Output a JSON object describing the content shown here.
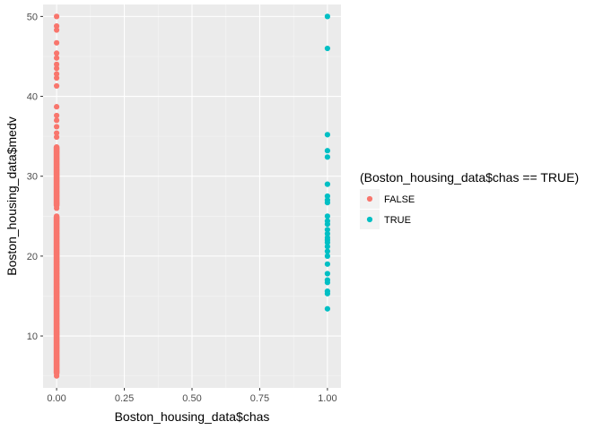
{
  "chart_data": {
    "type": "scatter",
    "xlabel": "Boston_housing_data$chas",
    "ylabel": "Boston_housing_data$medv",
    "xlim": [
      -0.05,
      1.05
    ],
    "ylim": [
      3.5,
      51.5
    ],
    "x_ticks": [
      0.0,
      0.25,
      0.5,
      0.75,
      1.0
    ],
    "x_tick_labels": [
      "0.00",
      "0.25",
      "0.50",
      "0.75",
      "1.00"
    ],
    "y_ticks": [
      10,
      20,
      30,
      40,
      50
    ],
    "y_tick_labels": [
      "10",
      "20",
      "30",
      "40",
      "50"
    ],
    "grid": true,
    "legend": {
      "title": "(Boston_housing_data$chas == TRUE)",
      "placement": "right"
    },
    "series": [
      {
        "name": "FALSE",
        "color": "#F8766D",
        "x": 0,
        "y": [
          5.0,
          5.6,
          6.3,
          7.0,
          7.2,
          7.5,
          8.1,
          8.5,
          8.8,
          9.5,
          10.2,
          10.5,
          11.0,
          11.5,
          12.0,
          12.5,
          13.1,
          13.4,
          13.8,
          14.1,
          14.5,
          15.0,
          15.4,
          15.6,
          16.1,
          16.5,
          17.0,
          17.4,
          17.8,
          18.2,
          18.5,
          18.9,
          19.3,
          19.6,
          20.0,
          20.4,
          20.8,
          21.2,
          21.6,
          22.0,
          22.4,
          22.8,
          23.2,
          23.6,
          24.0,
          24.4,
          24.8,
          25.0,
          26.0,
          26.6,
          27.5,
          28.0,
          28.7,
          29.4,
          30.1,
          30.8,
          31.5,
          32.2,
          33.0,
          33.4,
          34.9,
          35.4,
          36.2,
          37.0,
          37.6,
          38.7,
          41.3,
          42.3,
          42.8,
          43.5,
          44.0,
          44.8,
          45.4,
          46.7,
          48.3,
          48.8,
          50.0
        ],
        "y_clusters": [
          [
            5.0,
            25.3
          ],
          [
            26.0,
            34.0
          ]
        ]
      },
      {
        "name": "TRUE",
        "color": "#00BFC4",
        "x": 1,
        "y": [
          13.4,
          15.3,
          15.6,
          16.7,
          17.0,
          17.8,
          19.0,
          20.0,
          20.6,
          21.2,
          21.7,
          22.0,
          22.3,
          22.8,
          23.3,
          24.0,
          24.4,
          25.0,
          26.7,
          27.0,
          27.5,
          29.0,
          32.4,
          33.2,
          35.2,
          46.0,
          50.0
        ]
      }
    ]
  }
}
